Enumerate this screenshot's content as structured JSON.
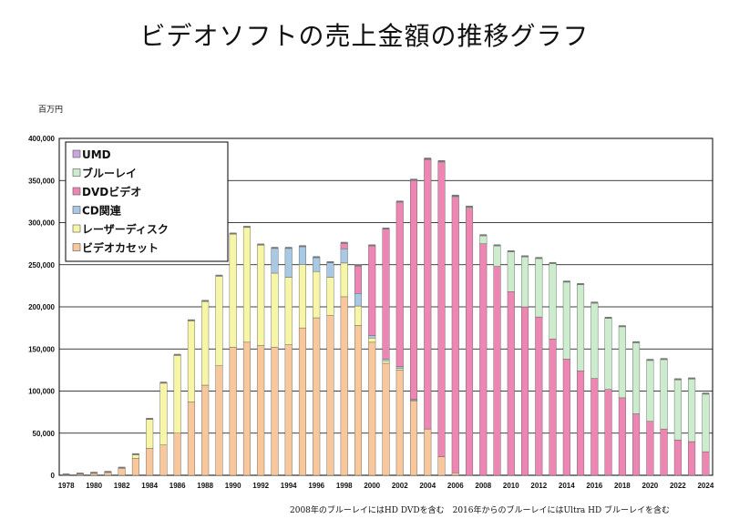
{
  "chart_data": {
    "type": "bar",
    "stacked": true,
    "title": "ビデオソフトの売上金額の推移グラフ",
    "ylabel": "百万円",
    "footnote": "2008年のブルーレイにはHD DVDを含む　2016年からのブルーレイにはUltra HD ブルーレイを含む",
    "ylim": [
      0,
      400000
    ],
    "yticks": [
      "0",
      "50,000",
      "100,000",
      "150,000",
      "200,000",
      "250,000",
      "300,000",
      "350,000",
      "400,000"
    ],
    "ytick_values": [
      0,
      50000,
      100000,
      150000,
      200000,
      250000,
      300000,
      350000,
      400000
    ],
    "xtick_labels": [
      "1978",
      "1980",
      "1982",
      "1984",
      "1986",
      "1988",
      "1990",
      "1992",
      "1994",
      "1996",
      "1998",
      "2000",
      "2002",
      "2004",
      "2006",
      "2008",
      "2010",
      "2012",
      "2014",
      "2016",
      "2018",
      "2020",
      "2022",
      "2024"
    ],
    "grid": true,
    "legend_position": "top-left",
    "categories": [
      "1978",
      "1979",
      "1980",
      "1981",
      "1982",
      "1983",
      "1984",
      "1985",
      "1986",
      "1987",
      "1988",
      "1989",
      "1990",
      "1991",
      "1992",
      "1993",
      "1994",
      "1995",
      "1996",
      "1997",
      "1998",
      "1999",
      "2000",
      "2001",
      "2002",
      "2003",
      "2004",
      "2005",
      "2006",
      "2007",
      "2008",
      "2009",
      "2010",
      "2011",
      "2012",
      "2013",
      "2014",
      "2015",
      "2016",
      "2017",
      "2018",
      "2019",
      "2020",
      "2021",
      "2022",
      "2023",
      "2024"
    ],
    "series": [
      {
        "name": "ビデオカセット",
        "color": "#f8c89c",
        "values": [
          1000,
          2000,
          3000,
          4000,
          9000,
          20000,
          32000,
          36000,
          50000,
          87000,
          107000,
          130000,
          152000,
          158000,
          154000,
          152000,
          155000,
          175000,
          187000,
          190000,
          212000,
          178000,
          158000,
          133000,
          125000,
          88000,
          55000,
          22000,
          3000,
          0,
          0,
          0,
          0,
          0,
          0,
          0,
          0,
          0,
          0,
          0,
          0,
          0,
          0,
          0,
          0,
          0,
          0
        ]
      },
      {
        "name": "レーザーディスク",
        "color": "#f6f6a6",
        "values": [
          0,
          0,
          0,
          0,
          0,
          5000,
          35000,
          74000,
          93000,
          97000,
          100000,
          107000,
          135000,
          137000,
          120000,
          88000,
          80000,
          75000,
          55000,
          45000,
          40000,
          23000,
          5000,
          3000,
          2000,
          1000,
          0,
          0,
          0,
          0,
          0,
          0,
          0,
          0,
          0,
          0,
          0,
          0,
          0,
          0,
          0,
          0,
          0,
          0,
          0,
          0,
          0
        ]
      },
      {
        "name": "CD関連",
        "color": "#a8c8e4",
        "values": [
          0,
          0,
          0,
          0,
          0,
          0,
          0,
          0,
          0,
          0,
          0,
          0,
          0,
          0,
          0,
          30000,
          35000,
          22000,
          17000,
          18000,
          17000,
          15000,
          3000,
          2000,
          2000,
          1000,
          0,
          0,
          0,
          0,
          0,
          0,
          0,
          0,
          0,
          0,
          0,
          0,
          0,
          0,
          0,
          0,
          0,
          0,
          0,
          0,
          0
        ]
      },
      {
        "name": "DVDビデオ",
        "color": "#ee86b4",
        "values": [
          0,
          0,
          0,
          0,
          0,
          0,
          0,
          0,
          0,
          0,
          0,
          0,
          0,
          0,
          0,
          0,
          0,
          0,
          0,
          0,
          7000,
          33000,
          107000,
          155000,
          196000,
          260000,
          320000,
          350000,
          327000,
          317000,
          275000,
          248000,
          218000,
          200000,
          188000,
          162000,
          138000,
          124000,
          115000,
          102000,
          92000,
          73000,
          64000,
          55000,
          42000,
          40000,
          28000
        ]
      },
      {
        "name": "ブルーレイ",
        "color": "#cdeccd",
        "values": [
          0,
          0,
          0,
          0,
          0,
          0,
          0,
          0,
          0,
          0,
          0,
          0,
          0,
          0,
          0,
          0,
          0,
          0,
          0,
          0,
          0,
          0,
          0,
          0,
          0,
          0,
          0,
          0,
          1000,
          2000,
          10000,
          25000,
          48000,
          60000,
          70000,
          90000,
          92000,
          103000,
          90000,
          85000,
          85000,
          85000,
          73000,
          83000,
          72000,
          75000,
          69000
        ]
      },
      {
        "name": "UMD",
        "color": "#c8a8dc",
        "values": [
          0,
          0,
          0,
          0,
          0,
          0,
          0,
          0,
          0,
          0,
          0,
          0,
          0,
          0,
          0,
          0,
          0,
          0,
          0,
          0,
          0,
          0,
          0,
          0,
          0,
          1000,
          1000,
          1000,
          1000,
          0,
          0,
          0,
          0,
          0,
          0,
          0,
          0,
          0,
          0,
          0,
          0,
          0,
          0,
          0,
          0,
          0,
          0
        ]
      }
    ],
    "legend_order": [
      "UMD",
      "ブルーレイ",
      "DVDビデオ",
      "CD関連",
      "レーザーディスク",
      "ビデオカセット"
    ]
  }
}
